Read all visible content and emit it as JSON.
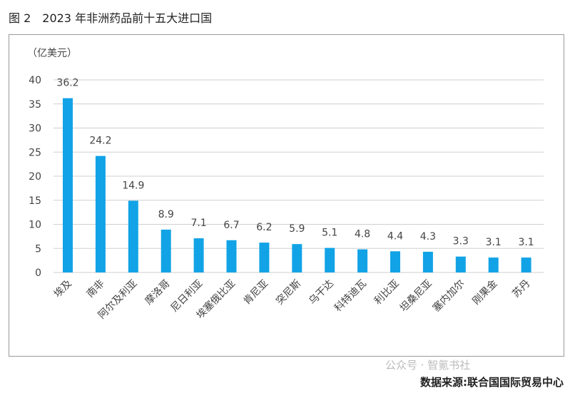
{
  "title": "图 2　2023 年非洲药品前十五大进口国",
  "source": "数据来源:联合国国际贸易中心",
  "watermark": "公众号 · 智氪书社",
  "colors": {
    "bar": "#12a3e6",
    "grid": "#cfcfcf"
  },
  "chart_data": {
    "type": "bar",
    "title": "2023 年非洲药品前十五大进口国",
    "ylabel": "（亿美元）",
    "ylim": [
      0,
      40
    ],
    "yticks": [
      0,
      5,
      10,
      15,
      20,
      25,
      30,
      35,
      40
    ],
    "grid": true,
    "categories": [
      "埃及",
      "南非",
      "阿尔及利亚",
      "摩洛哥",
      "尼日利亚",
      "埃塞俄比亚",
      "肯尼亚",
      "突尼斯",
      "乌干达",
      "科特迪瓦",
      "利比亚",
      "坦桑尼亚",
      "塞内加尔",
      "刚果金",
      "苏丹"
    ],
    "values": [
      36.2,
      24.2,
      14.9,
      8.9,
      7.1,
      6.7,
      6.2,
      5.9,
      5.1,
      4.8,
      4.4,
      4.3,
      3.3,
      3.1,
      3.1
    ]
  }
}
